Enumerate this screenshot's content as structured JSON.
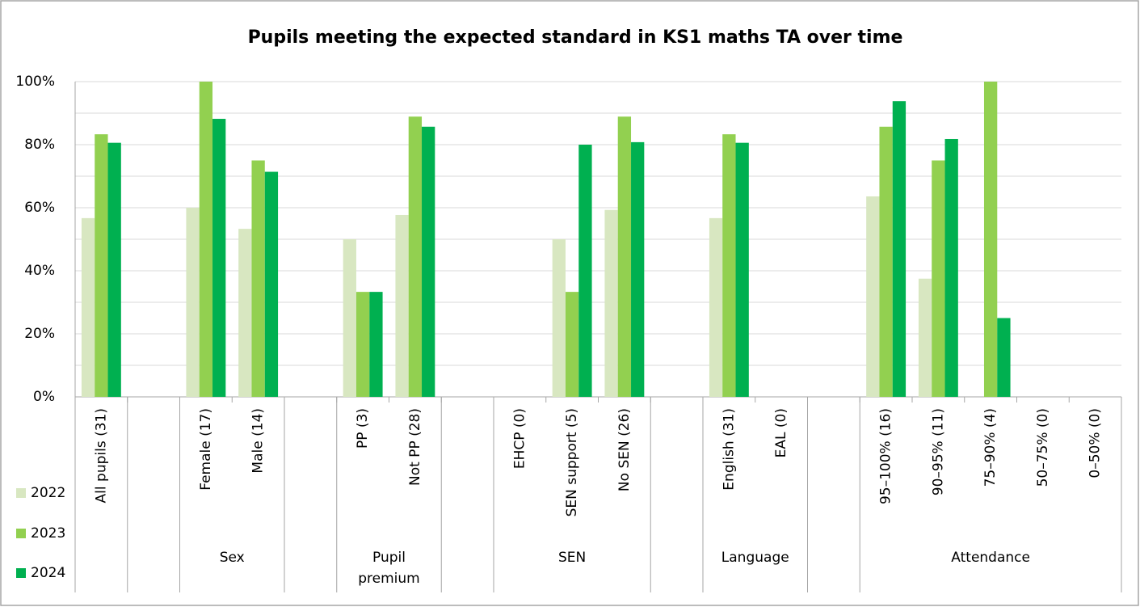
{
  "chart_data": {
    "type": "bar",
    "title": "Pupils meeting the expected standard in KS1 maths TA over time",
    "categories": [
      "All pupils (31)",
      null,
      "Female (17)",
      "Male (14)",
      null,
      "PP (3)",
      "Not PP (28)",
      null,
      "EHCP (0)",
      "SEN support (5)",
      "No SEN (26)",
      null,
      "English (31)",
      "EAL (0)",
      null,
      "95–100% (16)",
      "90–95% (11)",
      "75–90% (4)",
      "50–75% (0)",
      "0–50% (0)"
    ],
    "groups": [
      {
        "label": null,
        "span": 1
      },
      {
        "label": null,
        "span": 1
      },
      {
        "label": "Sex",
        "span": 2
      },
      {
        "label": null,
        "span": 1
      },
      {
        "label": "Pupil premium",
        "span": 2
      },
      {
        "label": null,
        "span": 1
      },
      {
        "label": "SEN",
        "span": 3
      },
      {
        "label": null,
        "span": 1
      },
      {
        "label": "Language",
        "span": 2
      },
      {
        "label": null,
        "span": 1
      },
      {
        "label": "Attendance",
        "span": 5
      }
    ],
    "series": [
      {
        "name": "2022",
        "color": "#d8e7c1",
        "values": [
          56.7,
          null,
          60,
          53.3,
          null,
          50,
          57.7,
          null,
          null,
          50,
          59.3,
          null,
          56.7,
          null,
          null,
          63.6,
          37.5,
          null,
          null,
          null
        ]
      },
      {
        "name": "2023",
        "color": "#92d050",
        "values": [
          83.3,
          null,
          100,
          75,
          null,
          33.3,
          88.9,
          null,
          null,
          33.3,
          88.9,
          null,
          83.3,
          null,
          null,
          85.7,
          75,
          100,
          null,
          null
        ]
      },
      {
        "name": "2024",
        "color": "#00b050",
        "values": [
          80.6,
          null,
          88.2,
          71.4,
          null,
          33.3,
          85.7,
          null,
          null,
          80,
          80.8,
          null,
          80.6,
          null,
          null,
          93.8,
          81.8,
          25,
          null,
          null
        ]
      }
    ],
    "ylim": [
      0,
      100
    ],
    "yticks": [
      {
        "value": 0,
        "label": "0%"
      },
      {
        "value": 20,
        "label": "20%"
      },
      {
        "value": 40,
        "label": "40%"
      },
      {
        "value": 60,
        "label": "60%"
      },
      {
        "value": 80,
        "label": "80%"
      },
      {
        "value": 100,
        "label": "100%"
      }
    ],
    "yminor": [
      10,
      30,
      50,
      70,
      90
    ],
    "grid": true,
    "legend": "bottom-left"
  }
}
